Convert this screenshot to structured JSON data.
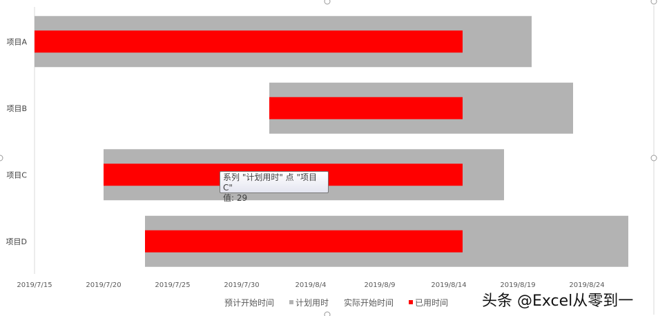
{
  "chart_data": {
    "type": "bar",
    "orientation": "horizontal",
    "stacked": true,
    "categories": [
      "项目A",
      "项目B",
      "项目C",
      "项目D"
    ],
    "series": [
      {
        "name": "预计开始时间",
        "values": [
          "2019/7/15",
          "2019/8/1",
          "2019/7/20",
          "2019/7/23"
        ],
        "color": "none"
      },
      {
        "name": "计划用时",
        "values": [
          36,
          22,
          29,
          35
        ],
        "color": "#b3b3b3"
      },
      {
        "name": "实际开始时间",
        "values": [
          "2019/7/15",
          "2019/8/1",
          "2019/7/20",
          "2019/7/23"
        ],
        "color": "none"
      },
      {
        "name": "已用时间",
        "values": [
          31,
          14,
          26,
          23
        ],
        "color": "#ff0000"
      }
    ],
    "x_ticks": [
      "2019/7/15",
      "2019/7/20",
      "2019/7/25",
      "2019/7/30",
      "2019/8/4",
      "2019/8/9",
      "2019/8/14",
      "2019/8/19",
      "2019/8/24"
    ],
    "xlim": [
      "2019/7/15",
      "2019/8/29"
    ],
    "legend_placement": "bottom",
    "legend": [
      {
        "label": "预计开始时间",
        "color": "none"
      },
      {
        "label": "计划用时",
        "color": "#b3b3b3"
      },
      {
        "label": "实际开始时间",
        "color": "none"
      },
      {
        "label": "已用时间",
        "color": "#ff0000"
      }
    ],
    "grid": false
  },
  "tooltip": {
    "line1": "系列 \"计划用时\" 点 \"项目C\"",
    "line2": "值: 29"
  },
  "watermark": "头条 @Excel从零到一"
}
